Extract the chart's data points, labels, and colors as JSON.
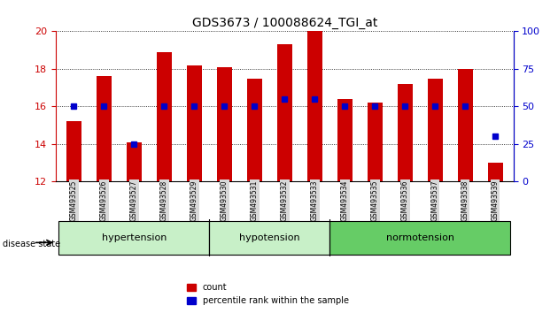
{
  "title": "GDS3673 / 100088624_TGI_at",
  "samples": [
    "GSM493525",
    "GSM493526",
    "GSM493527",
    "GSM493528",
    "GSM493529",
    "GSM493530",
    "GSM493531",
    "GSM493532",
    "GSM493533",
    "GSM493534",
    "GSM493535",
    "GSM493536",
    "GSM493537",
    "GSM493538",
    "GSM493539"
  ],
  "count_values": [
    15.2,
    17.6,
    14.1,
    18.9,
    18.2,
    18.1,
    17.5,
    19.3,
    20.0,
    16.4,
    16.2,
    17.2,
    17.5,
    18.0,
    13.0
  ],
  "percentile_values": [
    50,
    50,
    25,
    50,
    50,
    50,
    50,
    55,
    55,
    50,
    50,
    50,
    50,
    50,
    30
  ],
  "ymin": 12,
  "ymax": 20,
  "yticks": [
    12,
    14,
    16,
    18,
    20
  ],
  "y2min": 0,
  "y2max": 100,
  "y2ticks": [
    0,
    25,
    50,
    75,
    100
  ],
  "bar_color": "#cc0000",
  "dot_color": "#0000cc",
  "bar_width": 0.5,
  "groups": [
    {
      "label": "hypertension",
      "start": 0,
      "end": 4,
      "color": "#aaffaa"
    },
    {
      "label": "hypotension",
      "start": 5,
      "end": 8,
      "color": "#aaffaa"
    },
    {
      "label": "normotension",
      "start": 9,
      "end": 14,
      "color": "#66ee66"
    }
  ],
  "group_boundaries": [
    0,
    5,
    9,
    15
  ],
  "group_labels": [
    "hypertension",
    "hypotension",
    "normotension"
  ],
  "group_colors": [
    "#c8f0c8",
    "#c8f0c8",
    "#66cc66"
  ],
  "group_starts": [
    0,
    5,
    9
  ],
  "group_ends": [
    5,
    9,
    15
  ],
  "xlabel": "disease state",
  "legend_count_label": "count",
  "legend_pct_label": "percentile rank within the sample",
  "background_color": "#ffffff",
  "plot_bg_color": "#ffffff",
  "grid_color": "#000000",
  "tick_color_left": "#cc0000",
  "tick_color_right": "#0000cc"
}
